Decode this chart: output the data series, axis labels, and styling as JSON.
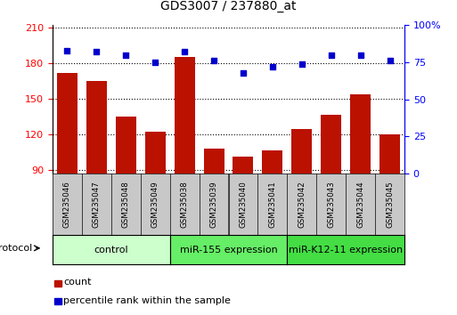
{
  "title": "GDS3007 / 237880_at",
  "samples": [
    "GSM235046",
    "GSM235047",
    "GSM235048",
    "GSM235049",
    "GSM235038",
    "GSM235039",
    "GSM235040",
    "GSM235041",
    "GSM235042",
    "GSM235043",
    "GSM235044",
    "GSM235045"
  ],
  "bar_values": [
    172,
    165,
    135,
    122,
    185,
    108,
    101,
    106,
    124,
    136,
    154,
    120
  ],
  "dot_values": [
    83,
    82,
    80,
    75,
    82,
    76,
    68,
    72,
    74,
    80,
    80,
    76
  ],
  "groups": [
    {
      "label": "control",
      "start": 0,
      "end": 4,
      "color": "#ccffcc"
    },
    {
      "label": "miR-155 expression",
      "start": 4,
      "end": 8,
      "color": "#66ee66"
    },
    {
      "label": "miR-K12-11 expression",
      "start": 8,
      "end": 12,
      "color": "#44dd44"
    }
  ],
  "ylim_left": [
    87,
    212
  ],
  "ylim_right": [
    0,
    100
  ],
  "yticks_left": [
    90,
    120,
    150,
    180,
    210
  ],
  "yticks_right": [
    0,
    25,
    50,
    75,
    100
  ],
  "bar_color": "#bb1100",
  "dot_color": "#0000cc",
  "bar_width": 0.7,
  "col_bg_color": "#c8c8c8",
  "plot_bg": "#ffffff",
  "legend_items": [
    {
      "label": "count",
      "color": "#bb1100"
    },
    {
      "label": "percentile rank within the sample",
      "color": "#0000cc"
    }
  ]
}
